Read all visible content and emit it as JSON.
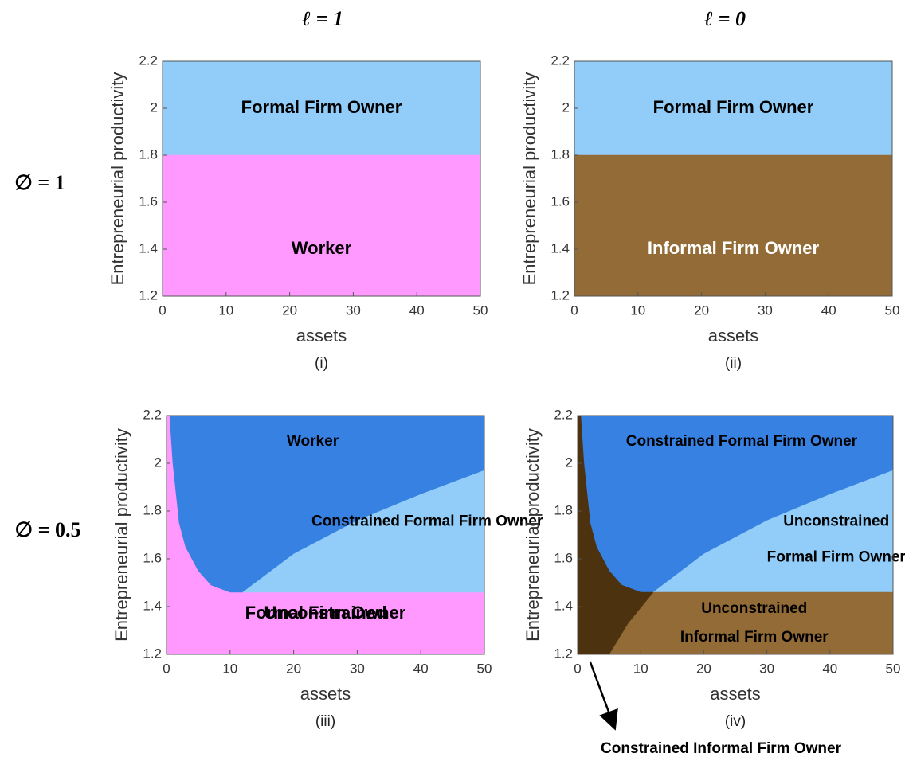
{
  "column_labels": [
    "ℓ = 1",
    "ℓ = 0"
  ],
  "row_labels": [
    "∅ = 1",
    "∅ = 0.5"
  ],
  "chart_data": [
    {
      "type": "region",
      "caption": "(i)",
      "xlabel": "assets",
      "ylabel": "Entrepreneurial productivity",
      "xlim": [
        0,
        50
      ],
      "ylim": [
        1.2,
        2.2
      ],
      "xticks": [
        0,
        10,
        20,
        30,
        40,
        50
      ],
      "yticks": [
        1.2,
        1.4,
        1.6,
        1.8,
        2,
        2.2
      ],
      "regions": [
        {
          "label_lines": [
            "Formal Firm Owner"
          ],
          "color": "#91cdf8",
          "label_color": "#000000",
          "x": [
            0,
            50,
            50,
            0
          ],
          "y": [
            1.8,
            1.8,
            2.2,
            2.2
          ]
        },
        {
          "label_lines": [
            "Worker"
          ],
          "color": "#ff99ff",
          "label_color": "#000000",
          "x": [
            0,
            50,
            50,
            0
          ],
          "y": [
            1.2,
            1.2,
            1.8,
            1.8
          ]
        }
      ]
    },
    {
      "type": "region",
      "caption": "(ii)",
      "xlabel": "assets",
      "ylabel": "Entrepreneurial productivity",
      "xlim": [
        0,
        50
      ],
      "ylim": [
        1.2,
        2.2
      ],
      "xticks": [
        0,
        10,
        20,
        30,
        40,
        50
      ],
      "yticks": [
        1.2,
        1.4,
        1.6,
        1.8,
        2,
        2.2
      ],
      "regions": [
        {
          "label_lines": [
            "Formal Firm Owner"
          ],
          "color": "#91cdf8",
          "label_color": "#000000",
          "x": [
            0,
            50,
            50,
            0
          ],
          "y": [
            1.8,
            1.8,
            2.2,
            2.2
          ]
        },
        {
          "label_lines": [
            "Informal Firm Owner"
          ],
          "color": "#936b36",
          "label_color": "#ffffff",
          "x": [
            0,
            50,
            50,
            0
          ],
          "y": [
            1.2,
            1.2,
            1.8,
            1.8
          ]
        }
      ]
    },
    {
      "type": "region",
      "caption": "(iii)",
      "xlabel": "assets",
      "ylabel": "Entrepreneurial productivity",
      "xlim": [
        0,
        50
      ],
      "ylim": [
        1.2,
        2.2
      ],
      "xticks": [
        0,
        10,
        20,
        30,
        40,
        50
      ],
      "yticks": [
        1.2,
        1.4,
        1.6,
        1.8,
        2,
        2.2
      ],
      "regions": [
        {
          "label_lines": [
            "Worker"
          ],
          "color": "#ff99ff",
          "label_color": "#000000",
          "x": [
            0,
            50,
            50,
            10,
            7,
            5,
            3,
            2,
            1,
            0.5,
            0
          ],
          "y": [
            1.2,
            1.2,
            1.46,
            1.46,
            1.49,
            1.55,
            1.65,
            1.75,
            2.0,
            2.2,
            2.2
          ]
        },
        {
          "label_lines": [
            "Constrained Formal Firm Owner"
          ],
          "color": "#3781e3",
          "label_color": "#000000",
          "x": [
            0.5,
            50,
            50,
            40,
            30,
            20,
            12,
            10,
            7,
            5,
            3,
            2,
            1
          ],
          "y": [
            2.2,
            2.2,
            1.97,
            1.87,
            1.76,
            1.62,
            1.46,
            1.46,
            1.49,
            1.55,
            1.65,
            1.75,
            2.0
          ]
        },
        {
          "label_lines": [
            "Unconstrained",
            "Formal Firm Owner"
          ],
          "color": "#91cdf8",
          "label_color": "#000000",
          "x": [
            12,
            20,
            30,
            40,
            50,
            50
          ],
          "y": [
            1.46,
            1.62,
            1.76,
            1.87,
            1.97,
            1.46
          ]
        }
      ]
    },
    {
      "type": "region",
      "caption": "(iv)",
      "xlabel": "assets",
      "ylabel": "Entrepreneurial productivity",
      "xlim": [
        0,
        50
      ],
      "ylim": [
        1.2,
        2.2
      ],
      "xticks": [
        0,
        10,
        20,
        30,
        40,
        50
      ],
      "yticks": [
        1.2,
        1.4,
        1.6,
        1.8,
        2,
        2.2
      ],
      "annotation": "Constrained Informal Firm Owner",
      "regions": [
        {
          "label_lines": [
            "Constrained Formal Firm Owner"
          ],
          "color": "#3781e3",
          "label_color": "#000000",
          "x": [
            0.5,
            50,
            50,
            40,
            30,
            20,
            12,
            10,
            7,
            5,
            3,
            2,
            1
          ],
          "y": [
            2.2,
            2.2,
            1.97,
            1.87,
            1.76,
            1.62,
            1.46,
            1.46,
            1.49,
            1.55,
            1.65,
            1.75,
            2.0
          ]
        },
        {
          "label_lines": [
            "Unconstrained",
            "Formal Firm Owner"
          ],
          "color": "#91cdf8",
          "label_color": "#000000",
          "x": [
            12,
            20,
            30,
            40,
            50,
            50
          ],
          "y": [
            1.46,
            1.62,
            1.76,
            1.87,
            1.97,
            1.46
          ]
        },
        {
          "label_lines": [
            "Unconstrained",
            "Informal Firm Owner"
          ],
          "color": "#936b36",
          "label_color": "#000000",
          "x": [
            5,
            50,
            50,
            12,
            8
          ],
          "y": [
            1.2,
            1.2,
            1.46,
            1.46,
            1.33
          ]
        },
        {
          "label_lines": [],
          "color": "#4d3210",
          "label_color": "#ffffff",
          "x": [
            0,
            5,
            8,
            12,
            10,
            7,
            5,
            3,
            2,
            1,
            0.5,
            0
          ],
          "y": [
            1.2,
            1.2,
            1.33,
            1.46,
            1.46,
            1.49,
            1.55,
            1.65,
            1.75,
            2.0,
            2.2,
            2.2
          ]
        }
      ]
    }
  ]
}
